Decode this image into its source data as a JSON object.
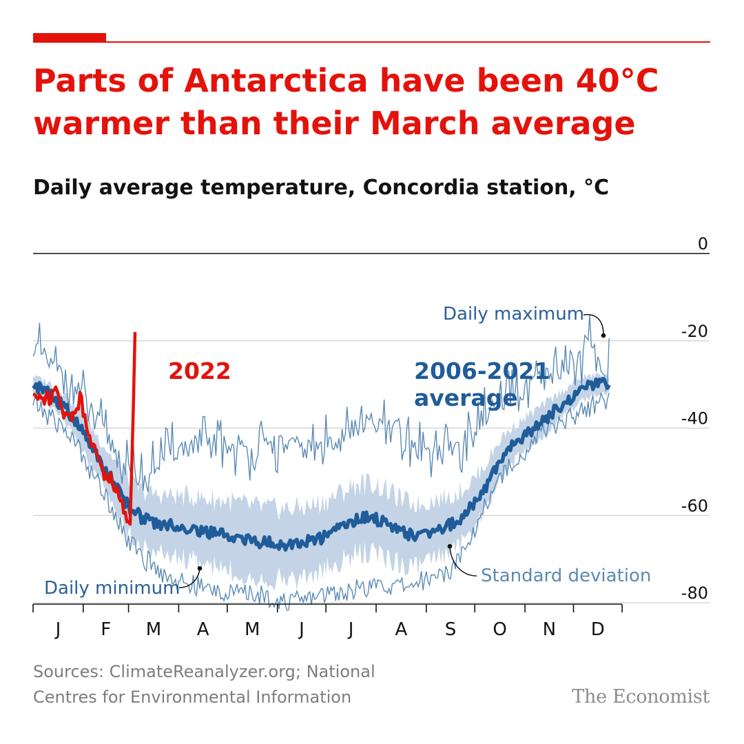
{
  "header": {
    "title": "Parts of Antarctica have been 40°C warmer than their March average",
    "subtitle": "Daily average temperature, Concordia station, °C"
  },
  "footer": {
    "source": "Sources: ClimateReanalyzer.org; National Centres for Environmental Information",
    "brand": "The Economist"
  },
  "colors": {
    "accent": "#e3120b",
    "average_line": "#1f5c99",
    "extreme_line": "#5b8ab5",
    "std_band": "#c4d4e6",
    "text": "#121212",
    "muted": "#7d7d7d"
  },
  "chart_data": {
    "type": "line",
    "title": "Daily average temperature, Concordia station, °C",
    "ylim": [
      -80,
      0
    ],
    "y_ticks": [
      0,
      -20,
      -40,
      -60,
      -80
    ],
    "y_tick_labels": [
      "0",
      "-20",
      "-40",
      "-60",
      "-80"
    ],
    "x_tick_labels": [
      "J",
      "F",
      "M",
      "A",
      "M",
      "J",
      "J",
      "A",
      "S",
      "O",
      "N",
      "D"
    ],
    "x_domain": "day of year (1–365)",
    "month_starts": [
      1,
      32,
      60,
      91,
      121,
      152,
      182,
      213,
      244,
      274,
      305,
      335,
      365
    ],
    "grid": true,
    "series": [
      {
        "name": "2006-2021 average",
        "role": "average",
        "days": [
          1,
          10,
          20,
          30,
          40,
          50,
          60,
          70,
          80,
          90,
          100,
          110,
          120,
          130,
          140,
          150,
          160,
          170,
          180,
          190,
          200,
          210,
          220,
          230,
          240,
          250,
          260,
          270,
          280,
          290,
          300,
          310,
          320,
          330,
          340,
          350,
          357
        ],
        "values": [
          -30,
          -32,
          -35,
          -40,
          -46,
          -52,
          -58,
          -61,
          -62,
          -62.5,
          -63,
          -64,
          -64.5,
          -65.5,
          -66,
          -66.5,
          -66.5,
          -66,
          -65,
          -63,
          -61,
          -60.5,
          -62,
          -64,
          -64.5,
          -63,
          -62,
          -59,
          -54,
          -47,
          -43,
          -40,
          -37,
          -34,
          -31,
          -30,
          -30
        ]
      },
      {
        "name": "2022",
        "role": "current-year",
        "days": [
          1,
          5,
          10,
          15,
          20,
          25,
          30,
          35,
          40,
          45,
          50,
          55,
          58,
          61,
          63,
          64
        ],
        "values": [
          -32,
          -33,
          -33,
          -32,
          -36,
          -38,
          -33,
          -40,
          -46,
          -50,
          -52,
          -55,
          -60,
          -62,
          -35,
          -18
        ]
      },
      {
        "name": "Daily maximum",
        "role": "max",
        "days": [
          1,
          10,
          20,
          30,
          40,
          50,
          60,
          70,
          80,
          90,
          100,
          110,
          120,
          130,
          140,
          150,
          160,
          170,
          180,
          190,
          200,
          210,
          220,
          230,
          240,
          250,
          260,
          270,
          280,
          290,
          300,
          310,
          320,
          330,
          340,
          345,
          350,
          357
        ],
        "values": [
          -21,
          -25,
          -28,
          -32,
          -38,
          -44,
          -50,
          -52,
          -47,
          -45,
          -44,
          -44,
          -44,
          -45,
          -45,
          -44,
          -44,
          -45,
          -44,
          -42,
          -40,
          -39,
          -40,
          -43,
          -45,
          -45,
          -45,
          -42,
          -37,
          -35,
          -32,
          -30,
          -28,
          -26,
          -24,
          -19,
          -26,
          -25
        ]
      },
      {
        "name": "Daily minimum",
        "role": "min",
        "days": [
          1,
          10,
          20,
          30,
          40,
          50,
          60,
          70,
          80,
          90,
          100,
          110,
          120,
          130,
          140,
          150,
          160,
          170,
          180,
          190,
          200,
          210,
          220,
          230,
          240,
          250,
          260,
          270,
          280,
          290,
          300,
          310,
          320,
          330,
          340,
          350,
          357
        ],
        "values": [
          -34,
          -37,
          -40,
          -45,
          -52,
          -58,
          -66,
          -70,
          -73,
          -75,
          -76,
          -77,
          -77.5,
          -78,
          -78,
          -79,
          -80,
          -79,
          -78,
          -77.5,
          -77,
          -76.5,
          -76,
          -76.5,
          -75,
          -74,
          -72,
          -66,
          -58,
          -51,
          -47,
          -43,
          -40,
          -38,
          -36,
          -34,
          -33
        ]
      },
      {
        "name": "Standard deviation",
        "role": "std-band",
        "days": [
          1,
          30,
          60,
          90,
          120,
          150,
          180,
          210,
          240,
          270,
          300,
          330,
          357
        ],
        "values": [
          2,
          4,
          6,
          7,
          8,
          8,
          8,
          8,
          7,
          6,
          4,
          3,
          2
        ]
      }
    ],
    "annotations": [
      {
        "id": "max",
        "text": "Daily maximum"
      },
      {
        "id": "min",
        "text": "Daily minimum"
      },
      {
        "id": "std",
        "text": "Standard deviation"
      }
    ],
    "labels": {
      "current": "2022",
      "average_line1": "2006-2021",
      "average_line2": "average"
    }
  }
}
